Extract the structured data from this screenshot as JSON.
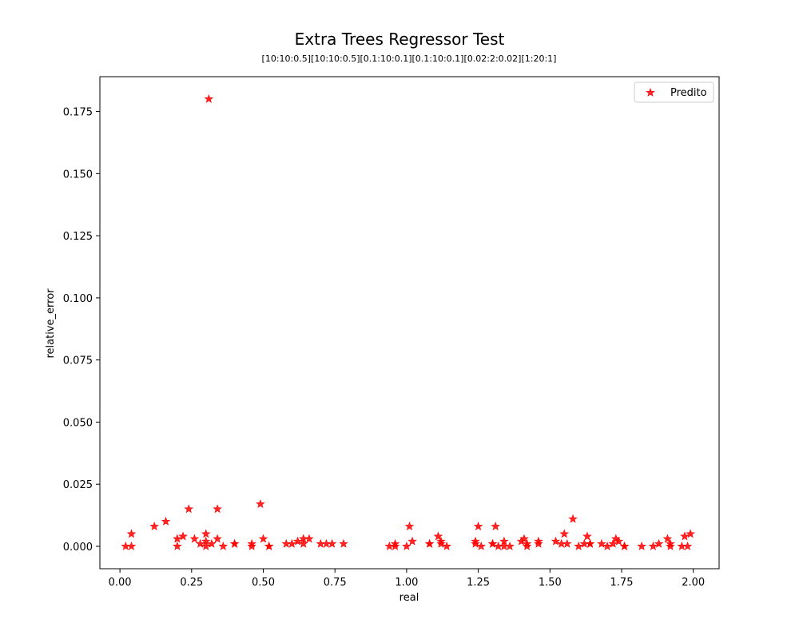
{
  "chart_data": {
    "type": "scatter",
    "title": "Extra Trees Regressor Test",
    "subtitle": "[10:10:0.5][10:10:0.5][0.1:10:0.1][0.1:10:0.1][0.02:2:0.02][1:20:1]",
    "xlabel": "real",
    "ylabel": "relative_error",
    "xlim": [
      -0.07,
      2.09
    ],
    "ylim": [
      -0.009,
      0.189
    ],
    "xticks": [
      0.0,
      0.25,
      0.5,
      0.75,
      1.0,
      1.25,
      1.5,
      1.75,
      2.0
    ],
    "xtick_labels": [
      "0.00",
      "0.25",
      "0.50",
      "0.75",
      "1.00",
      "1.25",
      "1.50",
      "1.75",
      "2.00"
    ],
    "yticks": [
      0.0,
      0.025,
      0.05,
      0.075,
      0.1,
      0.125,
      0.15,
      0.175
    ],
    "ytick_labels": [
      "0.000",
      "0.025",
      "0.050",
      "0.075",
      "0.100",
      "0.125",
      "0.150",
      "0.175"
    ],
    "grid": false,
    "legend": "top-right",
    "color": "#ff0000",
    "marker": "star",
    "series": [
      {
        "name": "Predito",
        "points": [
          [
            0.02,
            0.0
          ],
          [
            0.04,
            0.005
          ],
          [
            0.04,
            0.0
          ],
          [
            0.12,
            0.008
          ],
          [
            0.16,
            0.01
          ],
          [
            0.2,
            0.003
          ],
          [
            0.2,
            0.0
          ],
          [
            0.22,
            0.004
          ],
          [
            0.24,
            0.015
          ],
          [
            0.26,
            0.003
          ],
          [
            0.28,
            0.001
          ],
          [
            0.3,
            0.002
          ],
          [
            0.3,
            0.0
          ],
          [
            0.3,
            0.005
          ],
          [
            0.31,
            0.18
          ],
          [
            0.32,
            0.001
          ],
          [
            0.34,
            0.003
          ],
          [
            0.34,
            0.015
          ],
          [
            0.36,
            0.0
          ],
          [
            0.4,
            0.001
          ],
          [
            0.4,
            0.001
          ],
          [
            0.46,
            0.001
          ],
          [
            0.46,
            0.0
          ],
          [
            0.49,
            0.017
          ],
          [
            0.5,
            0.003
          ],
          [
            0.52,
            0.0
          ],
          [
            0.52,
            0.0
          ],
          [
            0.58,
            0.001
          ],
          [
            0.6,
            0.001
          ],
          [
            0.62,
            0.002
          ],
          [
            0.64,
            0.001
          ],
          [
            0.64,
            0.003
          ],
          [
            0.66,
            0.003
          ],
          [
            0.7,
            0.001
          ],
          [
            0.72,
            0.001
          ],
          [
            0.74,
            0.001
          ],
          [
            0.78,
            0.001
          ],
          [
            0.94,
            0.0
          ],
          [
            0.96,
            0.0
          ],
          [
            0.96,
            0.001
          ],
          [
            1.0,
            0.0
          ],
          [
            1.01,
            0.008
          ],
          [
            1.02,
            0.002
          ],
          [
            1.08,
            0.001
          ],
          [
            1.08,
            0.001
          ],
          [
            1.11,
            0.004
          ],
          [
            1.12,
            0.001
          ],
          [
            1.12,
            0.002
          ],
          [
            1.14,
            0.0
          ],
          [
            1.24,
            0.001
          ],
          [
            1.24,
            0.002
          ],
          [
            1.25,
            0.008
          ],
          [
            1.26,
            0.0
          ],
          [
            1.3,
            0.001
          ],
          [
            1.3,
            0.001
          ],
          [
            1.31,
            0.008
          ],
          [
            1.32,
            0.0
          ],
          [
            1.34,
            0.002
          ],
          [
            1.34,
            0.0
          ],
          [
            1.36,
            0.0
          ],
          [
            1.4,
            0.002
          ],
          [
            1.41,
            0.003
          ],
          [
            1.42,
            0.001
          ],
          [
            1.42,
            0.0
          ],
          [
            1.46,
            0.002
          ],
          [
            1.46,
            0.001
          ],
          [
            1.52,
            0.002
          ],
          [
            1.54,
            0.001
          ],
          [
            1.55,
            0.005
          ],
          [
            1.56,
            0.001
          ],
          [
            1.58,
            0.011
          ],
          [
            1.6,
            0.0
          ],
          [
            1.62,
            0.001
          ],
          [
            1.63,
            0.004
          ],
          [
            1.64,
            0.001
          ],
          [
            1.64,
            0.001
          ],
          [
            1.68,
            0.001
          ],
          [
            1.7,
            0.0
          ],
          [
            1.72,
            0.001
          ],
          [
            1.73,
            0.003
          ],
          [
            1.74,
            0.002
          ],
          [
            1.76,
            0.0
          ],
          [
            1.76,
            0.0
          ],
          [
            1.82,
            0.0
          ],
          [
            1.86,
            0.0
          ],
          [
            1.88,
            0.001
          ],
          [
            1.91,
            0.003
          ],
          [
            1.92,
            0.001
          ],
          [
            1.92,
            0.0
          ],
          [
            1.96,
            0.0
          ],
          [
            1.97,
            0.004
          ],
          [
            1.98,
            0.0
          ],
          [
            1.99,
            0.005
          ]
        ]
      }
    ]
  }
}
